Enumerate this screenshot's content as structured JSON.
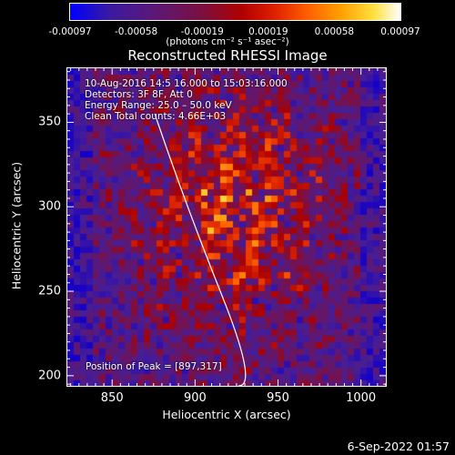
{
  "chart_data": {
    "type": "heatmap",
    "title": "Reconstructed RHESSI Image",
    "xlabel": "Heliocentric X (arcsec)",
    "ylabel": "Heliocentric Y (arcsec)",
    "xlim": [
      823,
      1015
    ],
    "ylim": [
      194,
      382
    ],
    "x_ticks": [
      "850",
      "900",
      "950",
      "1000"
    ],
    "y_ticks": [
      "200",
      "250",
      "300",
      "350"
    ],
    "colorbar": {
      "range": [
        -0.00097,
        0.00097
      ],
      "tick_labels": [
        "-0.00097",
        "-0.00058",
        "-0.00019",
        "0.00019",
        "0.00058",
        "0.00097"
      ],
      "unit": "(photons cm⁻² s⁻¹ asec⁻²)"
    },
    "annotations": [
      "10-Aug-2016 14:5   16.000 to 15:03:16.000",
      "Detectors: 3F 8F, Att 0",
      "Energy Range: 25.0 – 50.0 keV",
      "Clean    Total counts: 4.66E+03",
      "Position of Peak = [897,317]"
    ],
    "peak_position": [
      897,
      317
    ],
    "colormap": "blue-purple-red-orange-yellow-white",
    "limb": "white curve (solar limb)"
  },
  "footer_date": "6-Sep-2022 01:57"
}
